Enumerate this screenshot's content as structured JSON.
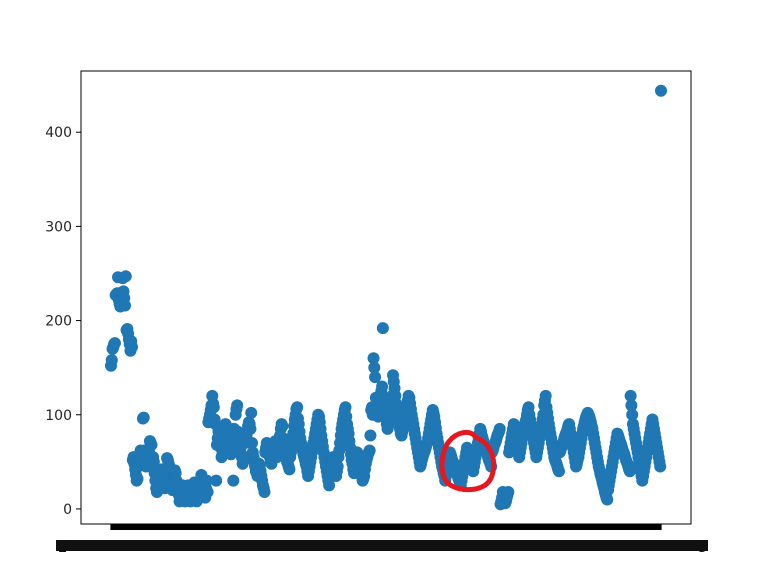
{
  "chart_data": {
    "type": "scatter",
    "title": "",
    "xlabel": "",
    "ylabel": "",
    "ylim": [
      -16,
      465
    ],
    "yticks": [
      0,
      100,
      200,
      300,
      400
    ],
    "grid": false,
    "legend": "none",
    "marker_color": "#1f77b4",
    "annotation": {
      "type": "hand-drawn circle",
      "color": "#e8161f",
      "target_index": 454
    },
    "x_tick_labels_overlapping": true,
    "x_tick_fragments": [
      "2",
      "5"
    ],
    "series": [
      {
        "values": [
          152,
          158,
          170,
          172,
          175,
          176,
          227,
          228,
          229,
          246,
          222,
          218,
          215,
          221,
          230,
          245,
          231,
          224,
          216,
          247,
          190,
          191,
          186,
          180,
          175,
          168,
          178,
          172,
          52,
          55,
          48,
          42,
          36,
          30,
          32,
          45,
          51,
          58,
          62,
          60,
          52,
          96,
          97,
          62,
          50,
          45,
          48,
          60,
          55,
          60,
          72,
          70,
          68,
          45,
          55,
          50,
          38,
          30,
          22,
          18,
          25,
          30,
          40,
          36,
          30,
          42,
          28,
          35,
          30,
          22,
          28,
          35,
          54,
          52,
          48,
          45,
          33,
          30,
          25,
          20,
          28,
          35,
          41,
          38,
          30,
          22,
          18,
          15,
          8,
          12,
          18,
          22,
          25,
          15,
          10,
          8,
          12,
          18,
          20,
          25,
          14,
          10,
          8,
          12,
          15,
          18,
          22,
          28,
          24,
          20,
          8,
          12,
          18,
          15,
          22,
          30,
          36,
          32,
          28,
          18,
          15,
          12,
          22,
          30,
          18,
          92,
          96,
          100,
          105,
          110,
          120,
          112,
          108,
          95,
          90,
          30,
          68,
          75,
          82,
          78,
          72,
          65,
          55,
          58,
          62,
          70,
          85,
          90,
          88,
          80,
          75,
          72,
          68,
          62,
          58,
          65,
          72,
          30,
          85,
          80,
          100,
          106,
          110,
          82,
          76,
          70,
          62,
          58,
          55,
          48,
          52,
          55,
          70,
          75,
          78,
          82,
          88,
          92,
          90,
          85,
          102,
          70,
          60,
          55,
          50,
          45,
          40,
          38,
          35,
          42,
          48,
          45,
          40,
          35,
          30,
          25,
          22,
          18,
          60,
          65,
          70,
          68,
          62,
          58,
          55,
          50,
          48,
          52,
          58,
          62,
          66,
          72,
          68,
          55,
          60,
          65,
          70,
          78,
          85,
          90,
          88,
          75,
          68,
          62,
          58,
          55,
          50,
          48,
          45,
          42,
          55,
          60,
          65,
          70,
          80,
          88,
          95,
          100,
          106,
          108,
          96,
          90,
          82,
          75,
          70,
          68,
          62,
          58,
          55,
          52,
          48,
          45,
          40,
          35,
          40,
          45,
          50,
          55,
          60,
          65,
          70,
          75,
          80,
          85,
          90,
          95,
          100,
          98,
          92,
          85,
          78,
          72,
          66,
          60,
          55,
          50,
          45,
          40,
          35,
          30,
          25,
          38,
          42,
          48,
          52,
          55,
          50,
          45,
          40,
          35,
          40,
          45,
          55,
          62,
          70,
          78,
          85,
          90,
          95,
          100,
          105,
          108,
          98,
          90,
          85,
          80,
          72,
          65,
          58,
          52,
          48,
          42,
          38,
          45,
          50,
          55,
          60,
          52,
          48,
          45,
          42,
          38,
          35,
          30,
          32,
          35,
          42,
          48,
          52,
          55,
          58,
          60,
          62,
          78,
          105,
          108,
          100,
          160,
          150,
          140,
          118,
          110,
          102,
          98,
          105,
          112,
          120,
          125,
          130,
          192,
          118,
          110,
          102,
          96,
          90,
          85,
          88,
          95,
          100,
          108,
          115,
          120,
          142,
          135,
          128,
          120,
          112,
          105,
          100,
          95,
          90,
          85,
          80,
          78,
          82,
          85,
          90,
          95,
          100,
          105,
          110,
          115,
          120,
          118,
          112,
          106,
          100,
          95,
          90,
          85,
          80,
          75,
          70,
          65,
          60,
          55,
          50,
          45,
          48,
          52,
          55,
          58,
          60,
          62,
          65,
          68,
          70,
          75,
          80,
          85,
          90,
          95,
          100,
          105,
          102,
          98,
          92,
          86,
          80,
          75,
          70,
          65,
          60,
          55,
          50,
          45,
          42,
          38,
          35,
          30,
          35,
          40,
          45,
          50,
          55,
          60,
          58,
          55,
          52,
          50,
          48,
          45,
          42,
          40,
          38,
          35,
          32,
          30,
          28,
          25,
          30,
          35,
          40,
          45,
          50,
          55,
          60,
          65,
          62,
          58,
          55,
          50,
          48,
          45,
          42,
          40,
          45,
          50,
          55,
          60,
          65,
          70,
          75,
          80,
          85,
          82,
          78,
          75,
          72,
          68,
          65,
          62,
          60,
          58,
          55,
          52,
          50,
          48,
          45,
          60,
          62,
          65,
          68,
          70,
          72,
          75,
          78,
          80,
          82,
          85,
          5,
          8,
          12,
          18,
          15,
          10,
          6,
          8,
          12,
          15,
          18,
          60,
          65,
          70,
          75,
          80,
          85,
          90,
          85,
          80,
          75,
          70,
          65,
          60,
          55,
          60,
          65,
          70,
          75,
          80,
          85,
          88,
          92,
          95,
          100,
          105,
          108,
          100,
          95,
          90,
          85,
          80,
          75,
          70,
          65,
          60,
          55,
          60,
          65,
          70,
          75,
          80,
          85,
          90,
          95,
          100,
          110,
          115,
          120,
          108,
          102,
          96,
          90,
          85,
          80,
          75,
          70,
          65,
          60,
          55,
          52,
          50,
          48,
          45,
          42,
          40,
          60,
          62,
          65,
          68,
          70,
          72,
          75,
          78,
          80,
          82,
          85,
          88,
          90,
          85,
          80,
          75,
          70,
          65,
          60,
          55,
          50,
          45,
          48,
          52,
          55,
          60,
          65,
          70,
          75,
          80,
          85,
          88,
          92,
          95,
          98,
          100,
          102,
          100,
          98,
          95,
          92,
          88,
          85,
          80,
          75,
          70,
          65,
          60,
          55,
          50,
          45,
          42,
          38,
          35,
          32,
          28,
          25,
          22,
          18,
          15,
          12,
          10,
          20,
          25,
          30,
          35,
          40,
          45,
          50,
          55,
          60,
          65,
          70,
          75,
          80,
          78,
          75,
          72,
          70,
          68,
          65,
          62,
          60,
          58,
          55,
          52,
          50,
          48,
          45,
          42,
          40,
          120,
          110,
          100,
          90,
          85,
          80,
          75,
          70,
          65,
          60,
          55,
          50,
          45,
          40,
          35,
          30,
          35,
          40,
          45,
          50,
          55,
          60,
          65,
          70,
          75,
          80,
          85,
          90,
          95,
          90,
          85,
          80,
          75,
          70,
          65,
          60,
          55,
          50,
          45,
          444
        ]
      }
    ]
  }
}
